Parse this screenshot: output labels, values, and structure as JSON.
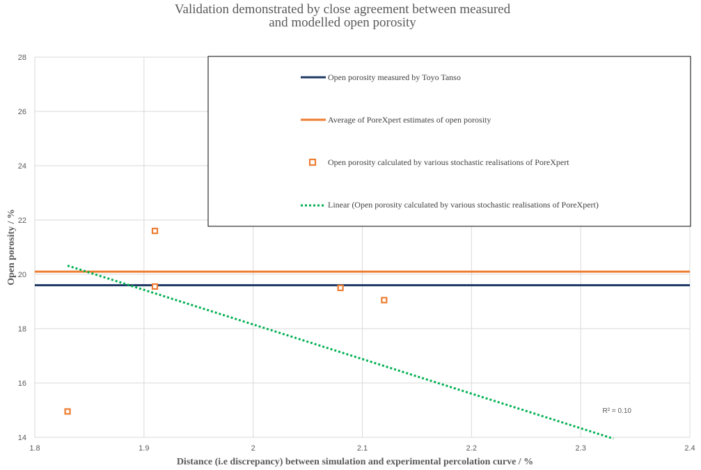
{
  "chart_data": {
    "type": "scatter",
    "title_lines": [
      "Validation demonstrated by close agreement between measured",
      "and modelled open porosity"
    ],
    "xlabel": "Distance (i.e discrepancy) between simulation and experimental percolation curve / %",
    "ylabel": "Open porosity / %",
    "xlim": [
      1.8,
      2.4
    ],
    "ylim": [
      14,
      28
    ],
    "x_ticks": [
      1.8,
      1.9,
      2,
      2.1,
      2.2,
      2.3,
      2.4
    ],
    "x_tick_labels": [
      "1.8",
      "1.9",
      "2",
      "2.1",
      "2.2",
      "2.3",
      "2.4"
    ],
    "y_ticks": [
      14,
      16,
      18,
      20,
      22,
      24,
      26,
      28
    ],
    "y_tick_labels": [
      "14",
      "16",
      "18",
      "20",
      "22",
      "24",
      "26",
      "28"
    ],
    "grid": true,
    "colors": {
      "measured": "#1f3864",
      "average": "#ed7d31",
      "points": "#ed7d31",
      "trend": "#00b050",
      "grid": "#d9d9d9",
      "legend_border": "#000000"
    },
    "series": [
      {
        "name": "Open porosity measured by Toyo Tanso",
        "kind": "hline",
        "y": 19.6
      },
      {
        "name": "Average of PoreXpert estimates of open porosity",
        "kind": "hline",
        "y": 20.1
      },
      {
        "name": "Open porosity calculated by various stochastic realisations of PoreXpert",
        "kind": "points",
        "x": [
          1.83,
          1.91,
          1.91,
          2.08,
          2.12
        ],
        "y": [
          14.95,
          21.6,
          19.55,
          19.5,
          19.05
        ]
      },
      {
        "name": "Linear (Open porosity calculated by various stochastic realisations of PoreXpert)",
        "kind": "trendline",
        "x": [
          1.83,
          2.33
        ],
        "y": [
          20.32,
          13.95
        ]
      }
    ],
    "legend_position": "top-right",
    "annotation": {
      "text": "R² = 0.10",
      "x": 2.32,
      "y": 14.9
    }
  }
}
